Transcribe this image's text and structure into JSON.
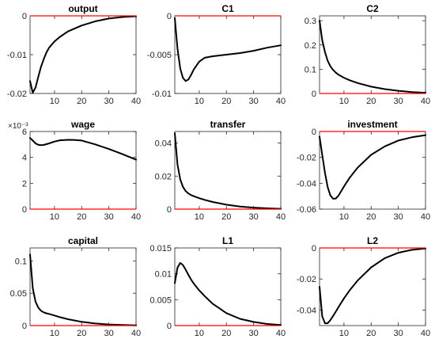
{
  "colors": {
    "series": "#000000",
    "zero_line": "#ff0000",
    "axes": "#262626",
    "background": "#ffffff"
  },
  "chart_data": [
    {
      "type": "line",
      "title": "output",
      "xlim": [
        1,
        40
      ],
      "ylim": [
        -0.02,
        0
      ],
      "xticks": [
        10,
        20,
        30,
        40
      ],
      "xtick_labels": [
        "10",
        "20",
        "30",
        "40"
      ],
      "yticks": [
        -0.02,
        -0.01,
        0
      ],
      "ytick_labels": [
        "-0.02",
        "-0.01",
        "0"
      ],
      "exponent_label": "",
      "x": [
        1,
        2,
        3,
        4,
        5,
        6,
        7,
        8,
        10,
        12,
        15,
        20,
        25,
        30,
        35,
        40
      ],
      "series": [
        {
          "values": [
            -0.0168,
            -0.0198,
            -0.0185,
            -0.0158,
            -0.0132,
            -0.0112,
            -0.0095,
            -0.0082,
            -0.0066,
            -0.0054,
            -0.004,
            -0.0025,
            -0.0014,
            -0.0007,
            -0.0003,
            -0.0001
          ]
        }
      ],
      "reference_line": 0
    },
    {
      "type": "line",
      "title": "C1",
      "xlim": [
        1,
        40
      ],
      "ylim": [
        -0.01,
        0
      ],
      "xticks": [
        10,
        20,
        30,
        40
      ],
      "xtick_labels": [
        "10",
        "20",
        "30",
        "40"
      ],
      "yticks": [
        -0.01,
        -0.005,
        0
      ],
      "ytick_labels": [
        "-0.01",
        "-0.005",
        "0"
      ],
      "exponent_label": "",
      "x": [
        1,
        2,
        3,
        4,
        5,
        6,
        7,
        8,
        10,
        12,
        15,
        20,
        25,
        30,
        35,
        40
      ],
      "series": [
        {
          "values": [
            -0.0003,
            -0.0042,
            -0.0068,
            -0.008,
            -0.0084,
            -0.0082,
            -0.0076,
            -0.0069,
            -0.0059,
            -0.0054,
            -0.0052,
            -0.005,
            -0.0048,
            -0.0045,
            -0.0041,
            -0.0038
          ]
        }
      ],
      "reference_line": 0
    },
    {
      "type": "line",
      "title": "C2",
      "xlim": [
        1,
        40
      ],
      "ylim": [
        0,
        0.32
      ],
      "xticks": [
        10,
        20,
        30,
        40
      ],
      "xtick_labels": [
        "10",
        "20",
        "30",
        "40"
      ],
      "yticks": [
        0,
        0.1,
        0.2,
        0.3
      ],
      "ytick_labels": [
        "0",
        "0.1",
        "0.2",
        "0.3"
      ],
      "exponent_label": "",
      "x": [
        1,
        2,
        3,
        4,
        5,
        6,
        7,
        8,
        10,
        12,
        15,
        20,
        25,
        30,
        35,
        40
      ],
      "series": [
        {
          "values": [
            0.3,
            0.22,
            0.17,
            0.135,
            0.112,
            0.097,
            0.086,
            0.077,
            0.065,
            0.055,
            0.043,
            0.028,
            0.018,
            0.011,
            0.006,
            0.003
          ]
        }
      ],
      "reference_line": 0
    },
    {
      "type": "line",
      "title": "wage",
      "xlim": [
        1,
        40
      ],
      "ylim": [
        0,
        0.006
      ],
      "xticks": [
        10,
        20,
        30,
        40
      ],
      "xtick_labels": [
        "10",
        "20",
        "30",
        "40"
      ],
      "yticks": [
        0,
        0.002,
        0.004,
        0.006
      ],
      "ytick_labels": [
        "0",
        "2",
        "4",
        "6"
      ],
      "exponent_label": "×10⁻³",
      "x": [
        1,
        2,
        3,
        4,
        5,
        6,
        8,
        10,
        12,
        15,
        17,
        20,
        25,
        30,
        35,
        40
      ],
      "series": [
        {
          "values": [
            0.0055,
            0.0053,
            0.00508,
            0.00497,
            0.00494,
            0.00496,
            0.00508,
            0.00522,
            0.00532,
            0.00536,
            0.00535,
            0.0053,
            0.005,
            0.00465,
            0.00425,
            0.00382
          ]
        }
      ],
      "reference_line": 0
    },
    {
      "type": "line",
      "title": "transfer",
      "xlim": [
        1,
        40
      ],
      "ylim": [
        0,
        0.047
      ],
      "xticks": [
        10,
        20,
        30,
        40
      ],
      "xtick_labels": [
        "10",
        "20",
        "30",
        "40"
      ],
      "yticks": [
        0,
        0.02,
        0.04
      ],
      "ytick_labels": [
        "0",
        "0.02",
        "0.04"
      ],
      "exponent_label": "",
      "x": [
        1,
        2,
        3,
        4,
        5,
        6,
        7,
        8,
        10,
        12,
        15,
        20,
        25,
        30,
        35,
        40
      ],
      "series": [
        {
          "values": [
            0.046,
            0.027,
            0.018,
            0.0135,
            0.011,
            0.0095,
            0.0085,
            0.0078,
            0.0066,
            0.0056,
            0.0043,
            0.0027,
            0.0016,
            0.0009,
            0.0005,
            0.0002
          ]
        }
      ],
      "reference_line": 0
    },
    {
      "type": "line",
      "title": "investment",
      "xlim": [
        1,
        40
      ],
      "ylim": [
        -0.06,
        0
      ],
      "xticks": [
        10,
        20,
        30,
        40
      ],
      "xtick_labels": [
        "10",
        "20",
        "30",
        "40"
      ],
      "yticks": [
        -0.06,
        -0.04,
        -0.02,
        0
      ],
      "ytick_labels": [
        "-0.06",
        "-0.04",
        "-0.02",
        "0"
      ],
      "exponent_label": "",
      "x": [
        1,
        2,
        3,
        4,
        5,
        6,
        7,
        8,
        9,
        10,
        12,
        15,
        20,
        25,
        30,
        35,
        40
      ],
      "series": [
        {
          "values": [
            -0.004,
            -0.018,
            -0.032,
            -0.043,
            -0.0495,
            -0.052,
            -0.0518,
            -0.0495,
            -0.046,
            -0.0425,
            -0.036,
            -0.028,
            -0.018,
            -0.0115,
            -0.007,
            -0.0045,
            -0.0028
          ]
        }
      ],
      "reference_line": 0
    },
    {
      "type": "line",
      "title": "capital",
      "xlim": [
        1,
        40
      ],
      "ylim": [
        0,
        0.12
      ],
      "xticks": [
        10,
        20,
        30,
        40
      ],
      "xtick_labels": [
        "10",
        "20",
        "30",
        "40"
      ],
      "yticks": [
        0,
        0.05,
        0.1
      ],
      "ytick_labels": [
        "0",
        "0.05",
        "0.1"
      ],
      "exponent_label": "",
      "x": [
        1,
        2,
        3,
        4,
        5,
        6,
        7,
        8,
        10,
        12,
        15,
        20,
        25,
        30,
        35,
        40
      ],
      "series": [
        {
          "values": [
            0.11,
            0.058,
            0.037,
            0.028,
            0.023,
            0.0205,
            0.019,
            0.018,
            0.0155,
            0.013,
            0.0098,
            0.0058,
            0.0032,
            0.0017,
            0.0009,
            0.0004
          ]
        }
      ],
      "reference_line": 0
    },
    {
      "type": "line",
      "title": "L1",
      "xlim": [
        1,
        40
      ],
      "ylim": [
        0,
        0.015
      ],
      "xticks": [
        10,
        20,
        30,
        40
      ],
      "xtick_labels": [
        "10",
        "20",
        "30",
        "40"
      ],
      "yticks": [
        0,
        0.005,
        0.01,
        0.015
      ],
      "ytick_labels": [
        "0",
        "0.005",
        "0.01",
        "0.015"
      ],
      "exponent_label": "",
      "x": [
        1,
        2,
        3,
        4,
        5,
        6,
        7,
        8,
        10,
        12,
        15,
        20,
        25,
        30,
        35,
        40
      ],
      "series": [
        {
          "values": [
            0.0082,
            0.0112,
            0.0121,
            0.0117,
            0.0108,
            0.0098,
            0.0089,
            0.0081,
            0.0068,
            0.0057,
            0.0042,
            0.0024,
            0.0013,
            0.0007,
            0.0003,
            0.0001
          ]
        }
      ],
      "reference_line": 0
    },
    {
      "type": "line",
      "title": "L2",
      "xlim": [
        1,
        40
      ],
      "ylim": [
        -0.05,
        0
      ],
      "xticks": [
        10,
        20,
        30,
        40
      ],
      "xtick_labels": [
        "10",
        "20",
        "30",
        "40"
      ],
      "yticks": [
        -0.04,
        -0.02,
        0
      ],
      "ytick_labels": [
        "-0.04",
        "-0.02",
        "0"
      ],
      "exponent_label": "",
      "x": [
        1,
        2,
        3,
        4,
        5,
        6,
        7,
        8,
        10,
        12,
        15,
        20,
        25,
        30,
        35,
        40
      ],
      "series": [
        {
          "values": [
            -0.025,
            -0.044,
            -0.0485,
            -0.0485,
            -0.0465,
            -0.0438,
            -0.041,
            -0.038,
            -0.0325,
            -0.0275,
            -0.021,
            -0.0125,
            -0.0066,
            -0.0031,
            -0.0012,
            -0.0003
          ]
        }
      ],
      "reference_line": 0
    }
  ]
}
